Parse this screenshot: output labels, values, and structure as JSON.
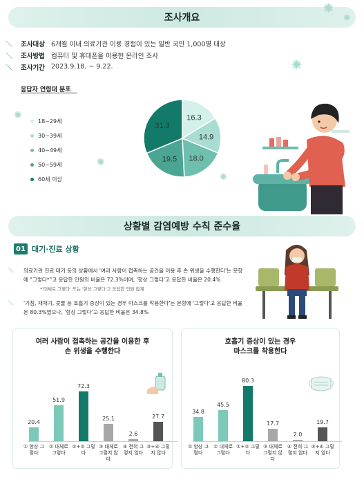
{
  "survey": {
    "title": "조사개요",
    "rows": [
      {
        "key": "조사대상",
        "value": "6개월 이내 의료기관 이용 경험이 있는 일반 국민 1,000명 대상"
      },
      {
        "key": "조사방법",
        "value": "컴퓨터 및 휴대폰을 이용한 온라인 조사"
      },
      {
        "key": "조사기간",
        "value": "2023.9.18. ~ 9.22."
      }
    ]
  },
  "age_section": {
    "title": "응답자 연령대 분포"
  },
  "chart_data": [
    {
      "type": "pie",
      "title": "응답자 연령대 분포",
      "labels": [
        "18~29세",
        "30~39세",
        "40~49세",
        "50~59세",
        "60세 이상"
      ],
      "values": [
        16.3,
        14.9,
        18.0,
        19.5,
        31.3
      ],
      "colors": [
        "#d3f0ea",
        "#a9ddd2",
        "#6fbfae",
        "#4aa593",
        "#137a69"
      ]
    },
    {
      "type": "bar",
      "title": "여러 사람이 접촉하는 공간을 이용한 후 손 위생을 수행한다",
      "categories": [
        "① 항상 그렇다",
        "② 대체로 그렇다",
        "①+②  그렇다",
        "③ 대체로 그렇지 않다",
        "④ 전혀 그렇지 않다",
        "③+④ 그렇지 않다"
      ],
      "values": [
        20.4,
        51.9,
        72.3,
        25.1,
        2.6,
        27.7
      ],
      "colors": [
        "#7cc9ba",
        "#7cc9ba",
        "#137a69",
        "#a7a7a7",
        "#a7a7a7",
        "#555555"
      ]
    },
    {
      "type": "bar",
      "title": "호흡기 증상이 있는 경우 마스크를 착용한다",
      "categories": [
        "① 항상 그렇다",
        "② 대체로 그렇다",
        "①+②  그렇다",
        "③ 대체로 그렇지 않다",
        "④ 전혀 그렇지 않다",
        "③+④ 그렇지 않다"
      ],
      "values": [
        34.8,
        45.5,
        80.3,
        17.7,
        2.0,
        19.7
      ],
      "colors": [
        "#7cc9ba",
        "#7cc9ba",
        "#137a69",
        "#a7a7a7",
        "#a7a7a7",
        "#555555"
      ]
    }
  ],
  "compliance": {
    "title": "상황별 감염예방 수칙 준수율",
    "section_num": "01",
    "section_title": "대기·진료 상황",
    "para1": "의료기관 진료 대기 등의 상황에서 '여러 사람이 접촉하는 공간을 이용 후 손 위생을 수행한다'는 문항에 \"그렇다*\"고 응답한 인원의 비율은 72.3%이며, '항상 그렇다'고 응답한 비율은 20.4%",
    "note": "*'대체로 그렇다' 또는 '항상 그렇다'고 응답한 인원 합계",
    "para2": "'기침, 재채기, 콧물 등 호흡기 증상이 있는 경우 마스크를 착용한다'는 문항에 '그렇다'고 응답한 비율은 80.3%였으나, '항상 그렇다'고 응답한 비율은 34.8%"
  },
  "card1_title": [
    "여러 사람이 접촉하는 공간을 이용한 후",
    "손 위생을 수행한다"
  ],
  "card2_title": [
    "호흡기 증상이 있는 경우",
    "마스크를 착용한다"
  ]
}
